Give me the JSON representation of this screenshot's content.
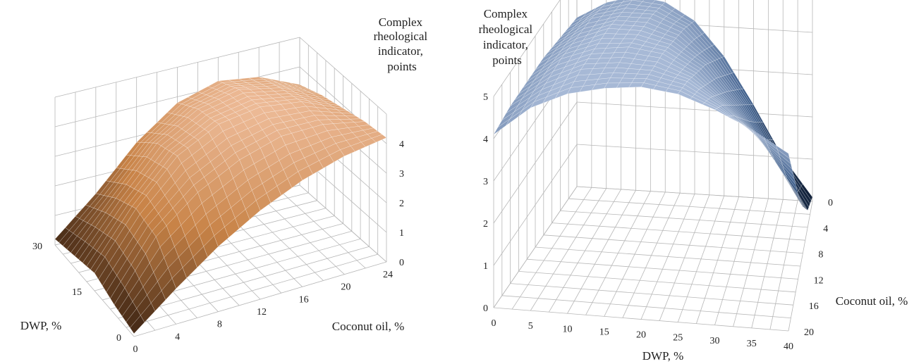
{
  "chart_data": [
    {
      "type": "surface",
      "title": "",
      "zlabel_lines": [
        "Complex",
        "rheological",
        "indicator,",
        "points"
      ],
      "xlabel": "Coconut oil, %",
      "ylabel": "DWP, %",
      "x_ticks": [
        "0",
        "4",
        "8",
        "12",
        "16",
        "20",
        "24"
      ],
      "y_ticks": [
        "0",
        "15",
        "30"
      ],
      "z_ticks": [
        "0",
        "1",
        "2",
        "3",
        "4"
      ],
      "xlim": [
        0,
        24
      ],
      "ylim": [
        0,
        30
      ],
      "zlim": [
        0,
        5
      ],
      "colors": {
        "high": "#f2c2a2",
        "mid": "#c88347",
        "low": "#3a2212"
      },
      "grid": true,
      "z": [
        [
          0.1,
          1.2,
          2.2,
          3.0,
          3.6,
          4.0,
          4.2
        ],
        [
          0.3,
          2.2,
          3.3,
          4.0,
          4.4,
          4.4,
          4.1
        ],
        [
          0.6,
          2.4,
          3.8,
          4.5,
          4.7,
          4.5,
          3.9
        ],
        [
          0.4,
          2.0,
          3.5,
          4.3,
          4.6,
          4.3,
          3.7
        ],
        [
          0.2,
          1.4,
          2.8,
          3.8,
          4.2,
          4.0,
          3.4
        ]
      ]
    },
    {
      "type": "surface",
      "title": "",
      "zlabel_lines": [
        "Complex",
        "rheological",
        "indicator,",
        "points"
      ],
      "xlabel": "DWP, %",
      "ylabel": "Coconut oil, %",
      "x_ticks": [
        "0",
        "5",
        "10",
        "15",
        "20",
        "25",
        "30",
        "35",
        "40"
      ],
      "y_ticks": [
        "0",
        "4",
        "8",
        "12",
        "16",
        "20"
      ],
      "z_ticks": [
        "0",
        "1",
        "2",
        "3",
        "4",
        "5"
      ],
      "xlim": [
        0,
        40
      ],
      "ylim": [
        0,
        20
      ],
      "zlim": [
        0,
        5
      ],
      "colors": {
        "high": "#a7b9d6",
        "mid": "#3f5f8c",
        "low": "#0c1a30"
      },
      "grid": true,
      "z": [
        [
          4.1,
          4.8,
          5.2,
          5.4,
          5.5,
          5.4,
          5.1,
          4.7,
          4.2
        ],
        [
          4.2,
          4.8,
          5.2,
          5.3,
          5.3,
          5.1,
          4.6,
          3.9,
          3.1
        ],
        [
          4.2,
          4.8,
          5.1,
          5.2,
          5.1,
          4.7,
          4.0,
          3.1,
          2.0
        ],
        [
          4.2,
          4.7,
          5.0,
          5.0,
          4.8,
          4.3,
          3.4,
          2.3,
          1.1
        ],
        [
          4.1,
          4.6,
          4.8,
          4.8,
          4.5,
          3.8,
          2.8,
          1.6,
          0.4
        ],
        [
          4.0,
          4.4,
          4.6,
          4.5,
          4.1,
          3.3,
          2.2,
          1.0,
          0.1
        ]
      ]
    }
  ]
}
